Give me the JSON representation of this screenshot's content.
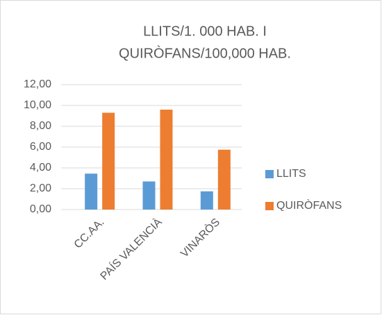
{
  "chart_data": {
    "type": "bar",
    "title": [
      "LLITS/1. 000 HAB. I",
      "QUIRÒFANS/100,000 HAB."
    ],
    "categories": [
      "CC.AA.",
      "PAÍS VALENCIÀ",
      "VINARÒS"
    ],
    "series": [
      {
        "name": "LLITS",
        "color": "#5b9bd5",
        "values": [
          3.45,
          2.7,
          1.75
        ]
      },
      {
        "name": "QUIRÒFANS",
        "color": "#ed7d31",
        "values": [
          9.3,
          9.6,
          5.75
        ]
      }
    ],
    "ylim": [
      0,
      12
    ],
    "yticks": [
      {
        "value": 0,
        "label": "0,00"
      },
      {
        "value": 2,
        "label": "2,00"
      },
      {
        "value": 4,
        "label": "4,00"
      },
      {
        "value": 6,
        "label": "6,00"
      },
      {
        "value": 8,
        "label": "8,00"
      },
      {
        "value": 10,
        "label": "10,00"
      },
      {
        "value": 12,
        "label": "12,00"
      }
    ],
    "grid": true,
    "legend": "right"
  }
}
